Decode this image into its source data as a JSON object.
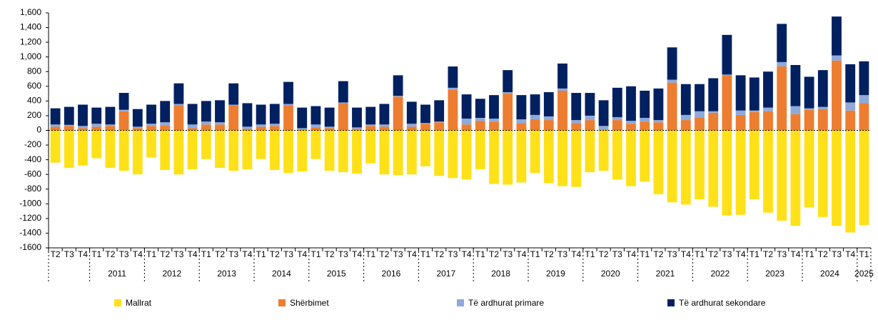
{
  "chart_data": {
    "type": "bar",
    "stacked": true,
    "categories": [
      "T2",
      "T3",
      "T4",
      "T1",
      "T2",
      "T3",
      "T4",
      "T1",
      "T2",
      "T3",
      "T4",
      "T1",
      "T2",
      "T3",
      "T4",
      "T1",
      "T2",
      "T3",
      "T4",
      "T1",
      "T2",
      "T3",
      "T4",
      "T1",
      "T2",
      "T3",
      "T4",
      "T1",
      "T2",
      "T3",
      "T4",
      "T1",
      "T2",
      "T3",
      "T4",
      "T1",
      "T2",
      "T3",
      "T4",
      "T1",
      "T2",
      "T3",
      "T4",
      "T1",
      "T2",
      "T3",
      "T4",
      "T1",
      "T2",
      "T3",
      "T4",
      "T1",
      "T2",
      "T3",
      "T4",
      "T1",
      "T2",
      "T3",
      "T4",
      "T1"
    ],
    "category_groups": [
      {
        "label": null,
        "size": 3
      },
      {
        "label": "2011",
        "size": 4
      },
      {
        "label": "2012",
        "size": 4
      },
      {
        "label": "2013",
        "size": 4
      },
      {
        "label": "2014",
        "size": 4
      },
      {
        "label": "2015",
        "size": 4
      },
      {
        "label": "2016",
        "size": 4
      },
      {
        "label": "2017",
        "size": 4
      },
      {
        "label": "2018",
        "size": 4
      },
      {
        "label": "2019",
        "size": 4
      },
      {
        "label": "2020",
        "size": 4
      },
      {
        "label": "2021",
        "size": 4
      },
      {
        "label": "2022",
        "size": 4
      },
      {
        "label": "2023",
        "size": 4
      },
      {
        "label": "2024",
        "size": 4
      },
      {
        "label": "2025",
        "size": 1
      }
    ],
    "series": [
      {
        "name": "Mallrat",
        "color": "#ffe11a",
        "values": [
          -440,
          -510,
          -480,
          -380,
          -510,
          -550,
          -600,
          -370,
          -540,
          -600,
          -530,
          -390,
          -510,
          -550,
          -530,
          -390,
          -540,
          -580,
          -560,
          -390,
          -550,
          -570,
          -590,
          -450,
          -600,
          -610,
          -600,
          -490,
          -620,
          -650,
          -670,
          -530,
          -730,
          -740,
          -710,
          -580,
          -720,
          -760,
          -770,
          -570,
          -550,
          -670,
          -760,
          -700,
          -870,
          -980,
          -1010,
          -940,
          -1040,
          -1160,
          -1150,
          -940,
          -1120,
          -1230,
          -1300,
          -1050,
          -1180,
          -1300,
          -1390,
          -1290
        ]
      },
      {
        "name": "Shërbimet",
        "color": "#ed7d31",
        "values": [
          50,
          60,
          30,
          50,
          60,
          260,
          30,
          60,
          70,
          340,
          30,
          80,
          80,
          340,
          20,
          50,
          60,
          340,
          10,
          40,
          30,
          370,
          20,
          60,
          50,
          460,
          50,
          90,
          110,
          550,
          80,
          130,
          120,
          500,
          100,
          150,
          140,
          540,
          100,
          140,
          10,
          140,
          90,
          120,
          110,
          650,
          140,
          170,
          240,
          750,
          210,
          250,
          260,
          870,
          220,
          280,
          290,
          950,
          270,
          370
        ]
      },
      {
        "name": "Të ardhurat primare",
        "color": "#8eaadb",
        "values": [
          30,
          15,
          30,
          40,
          20,
          20,
          20,
          30,
          40,
          20,
          50,
          40,
          30,
          10,
          30,
          30,
          30,
          20,
          20,
          40,
          20,
          10,
          20,
          20,
          30,
          10,
          40,
          10,
          10,
          30,
          80,
          40,
          40,
          20,
          50,
          60,
          50,
          30,
          40,
          60,
          50,
          40,
          40,
          50,
          30,
          40,
          70,
          90,
          20,
          10,
          60,
          20,
          50,
          60,
          110,
          20,
          30,
          70,
          110,
          110
        ]
      },
      {
        "name": "Të ardhurat sekondare",
        "color": "#002060",
        "values": [
          220,
          245,
          290,
          220,
          240,
          230,
          240,
          260,
          290,
          280,
          280,
          280,
          300,
          290,
          320,
          270,
          270,
          300,
          280,
          250,
          260,
          290,
          270,
          240,
          280,
          280,
          300,
          250,
          290,
          290,
          330,
          260,
          320,
          300,
          330,
          280,
          330,
          340,
          370,
          310,
          350,
          400,
          470,
          370,
          430,
          440,
          420,
          370,
          450,
          540,
          480,
          450,
          490,
          520,
          560,
          430,
          500,
          530,
          520,
          460
        ]
      }
    ],
    "ylim": [
      -1600,
      1600
    ],
    "yticks": [
      -1600,
      -1400,
      -1200,
      -1000,
      -800,
      -600,
      -400,
      -200,
      0,
      200,
      400,
      600,
      800,
      {
        "value": 1000,
        "label": "1,000"
      },
      {
        "value": 1200,
        "label": "1,200"
      },
      {
        "value": 1400,
        "label": "1,400"
      },
      {
        "value": 1600,
        "label": "1,600"
      }
    ],
    "legend": "bottom"
  }
}
